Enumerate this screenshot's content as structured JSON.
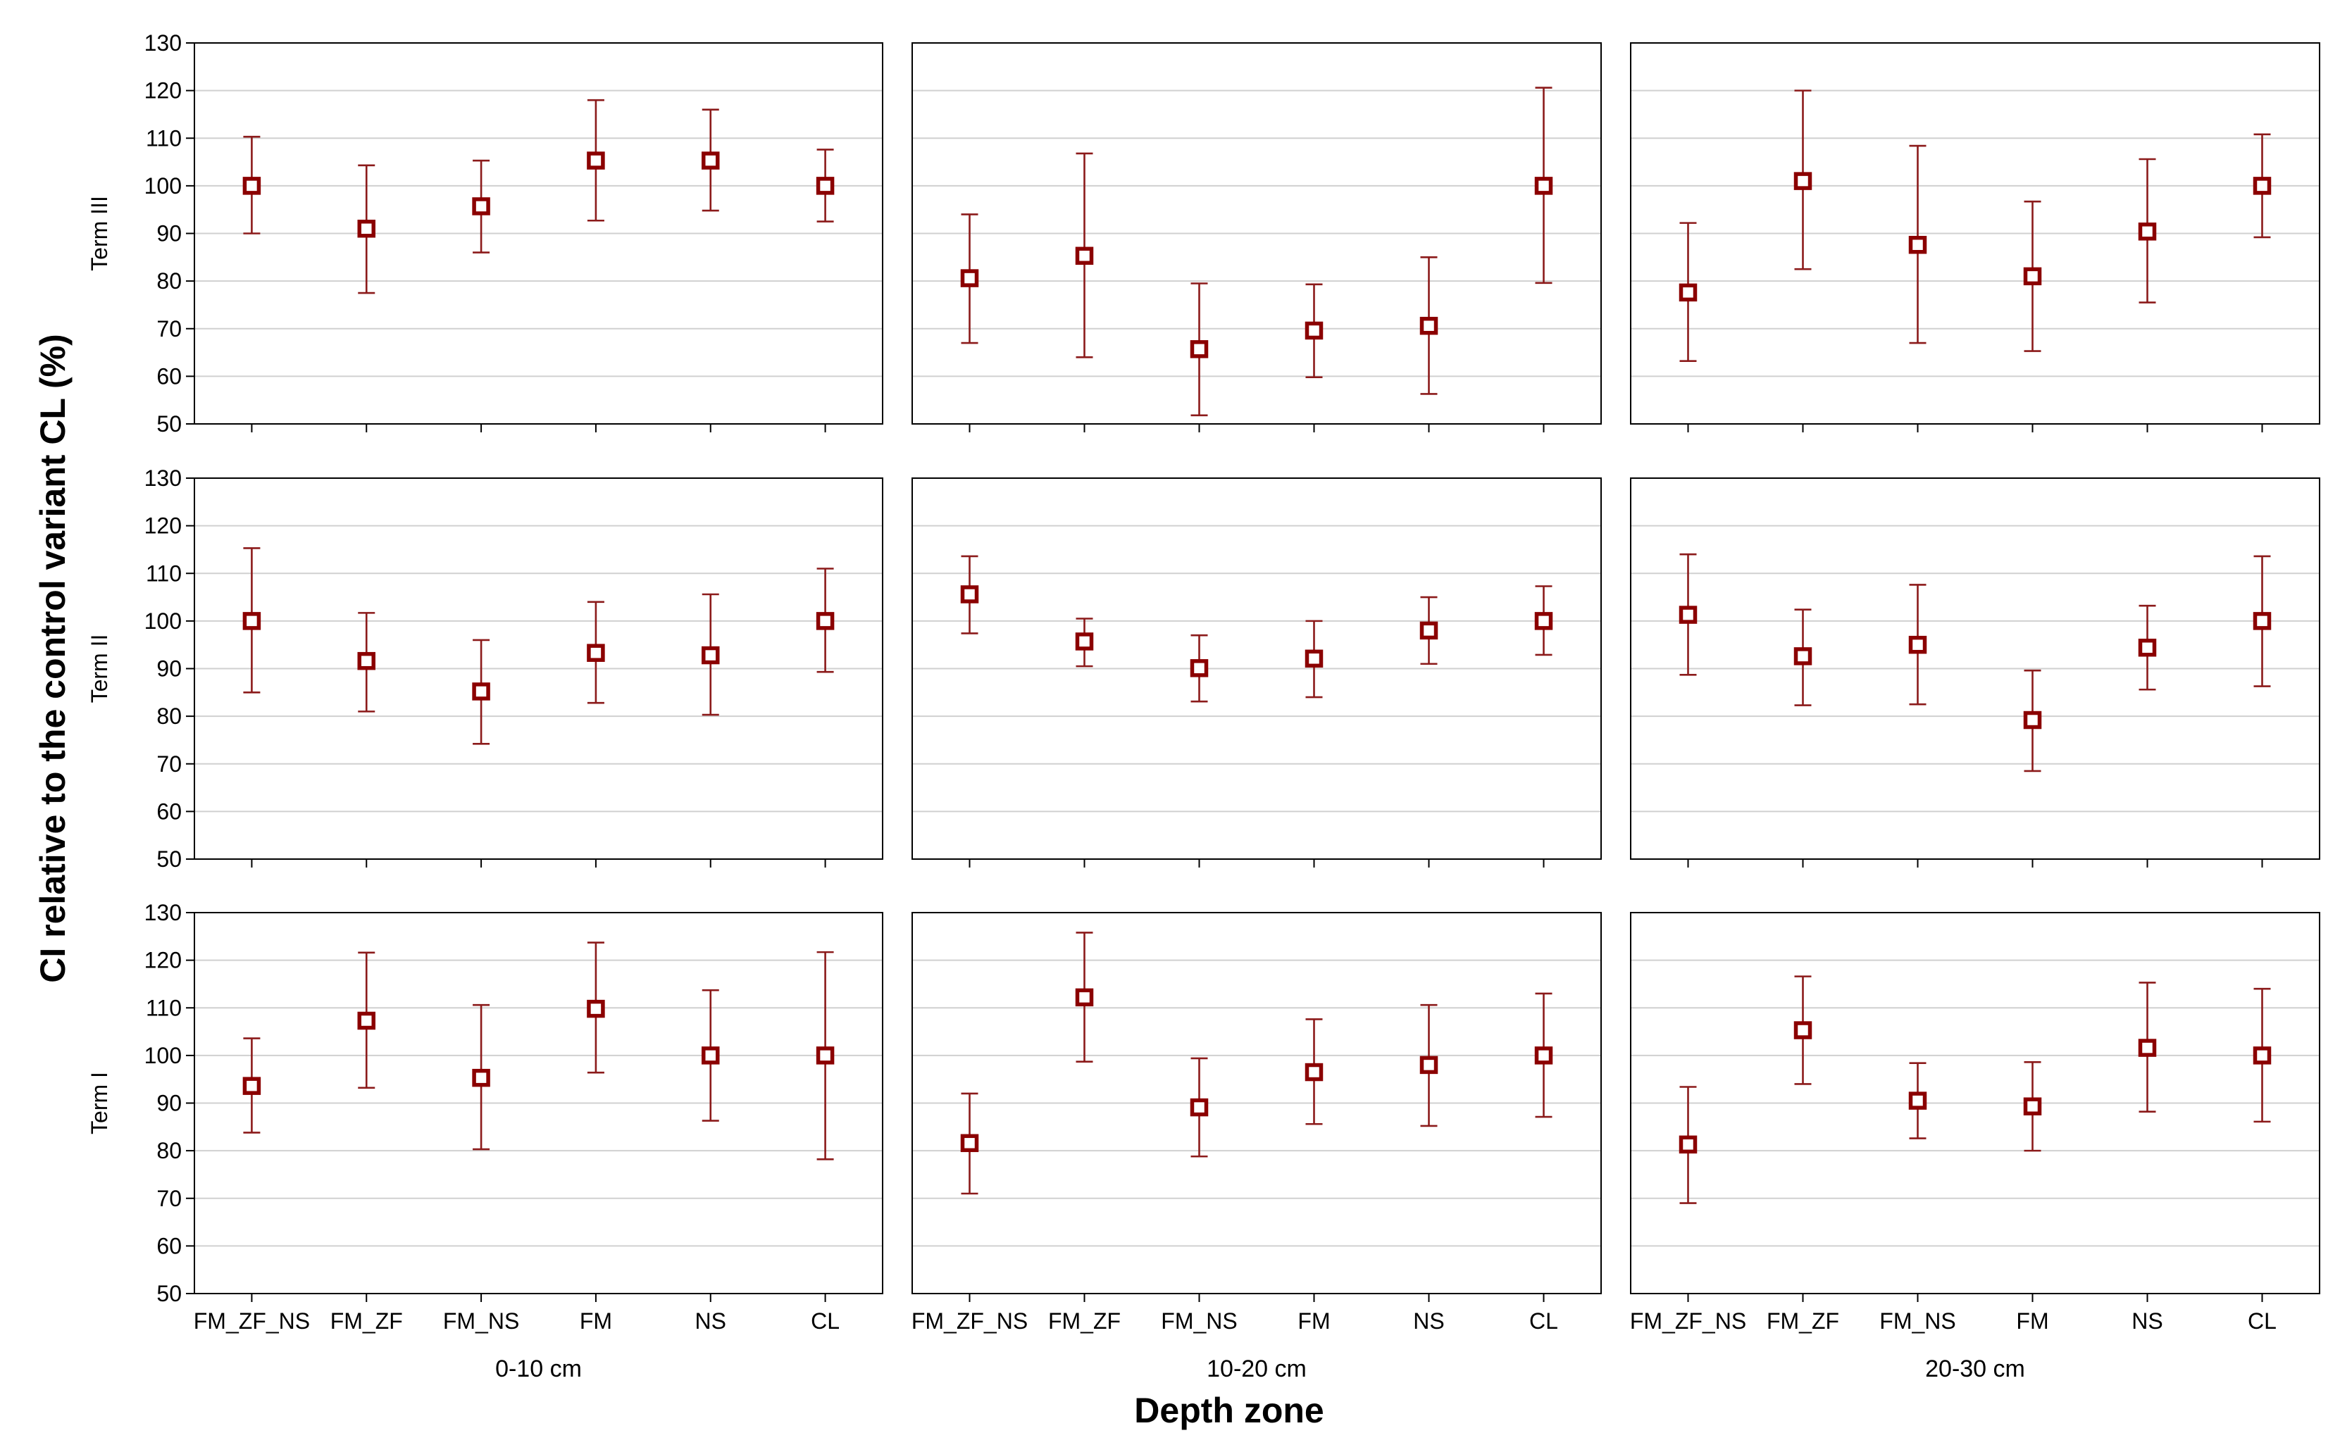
{
  "chart_data": {
    "type": "scatter",
    "subtype": "mean-with-error-bars",
    "ylabel": "CI relative to the control variant CL (%)",
    "xlabel": "Depth zone",
    "ylim": [
      50,
      130
    ],
    "yticks": [
      50,
      60,
      70,
      80,
      90,
      100,
      110,
      120,
      130
    ],
    "grid": true,
    "categories": [
      "FM_ZF_NS",
      "FM_ZF",
      "FM_NS",
      "FM",
      "NS",
      "CL"
    ],
    "zones": [
      "0-10 cm",
      "10-20 cm",
      "20-30 cm"
    ],
    "terms": [
      "Term III",
      "Term II",
      "Term I"
    ],
    "colors": {
      "marker": "#8b0000",
      "error_bar": "#8b1a1a",
      "grid": "#d0d0d0"
    },
    "panels": [
      {
        "term": "Term III",
        "zone": "0-10 cm",
        "mean": [
          100,
          91,
          95.7,
          105.3,
          105.3,
          100
        ],
        "lower": [
          90,
          77.5,
          86,
          92.7,
          94.8,
          92.5
        ],
        "upper": [
          110.3,
          104.3,
          105.3,
          118,
          116,
          107.6
        ]
      },
      {
        "term": "Term III",
        "zone": "10-20 cm",
        "mean": [
          80.6,
          85.3,
          65.7,
          69.6,
          70.6,
          100
        ],
        "lower": [
          67,
          64,
          51.8,
          59.8,
          56.3,
          79.6
        ],
        "upper": [
          94,
          106.8,
          79.5,
          79.3,
          85,
          120.6
        ]
      },
      {
        "term": "Term III",
        "zone": "20-30 cm",
        "mean": [
          77.6,
          101,
          87.6,
          81,
          90.4,
          100
        ],
        "lower": [
          63.2,
          82.5,
          67,
          65.3,
          75.5,
          89.2
        ],
        "upper": [
          92.2,
          120,
          108.4,
          96.7,
          105.6,
          110.8
        ]
      },
      {
        "term": "Term II",
        "zone": "0-10 cm",
        "mean": [
          100,
          91.6,
          85.2,
          93.3,
          92.8,
          100
        ],
        "lower": [
          85,
          81,
          74.2,
          82.8,
          80.3,
          89.3
        ],
        "upper": [
          115.3,
          101.7,
          96,
          104,
          105.6,
          111
        ]
      },
      {
        "term": "Term II",
        "zone": "10-20 cm",
        "mean": [
          105.6,
          95.7,
          90.1,
          92.1,
          98,
          100
        ],
        "lower": [
          97.4,
          90.5,
          83.1,
          84,
          91,
          92.9
        ],
        "upper": [
          113.6,
          100.5,
          97,
          100,
          105,
          107.3
        ]
      },
      {
        "term": "Term II",
        "zone": "20-30 cm",
        "mean": [
          101.3,
          92.6,
          95,
          79.2,
          94.4,
          100
        ],
        "lower": [
          88.7,
          82.3,
          82.5,
          68.5,
          85.6,
          86.3
        ],
        "upper": [
          114,
          102.4,
          107.6,
          89.6,
          103.2,
          113.6
        ]
      },
      {
        "term": "Term I",
        "zone": "0-10 cm",
        "mean": [
          93.6,
          107.3,
          95.3,
          109.8,
          100,
          100
        ],
        "lower": [
          83.8,
          93.2,
          80.3,
          96.4,
          86.3,
          78.2
        ],
        "upper": [
          103.6,
          121.6,
          110.6,
          123.7,
          113.7,
          121.7
        ]
      },
      {
        "term": "Term I",
        "zone": "10-20 cm",
        "mean": [
          81.6,
          112.2,
          89.1,
          96.5,
          98,
          100
        ],
        "lower": [
          71,
          98.7,
          78.8,
          85.6,
          85.2,
          87.1
        ],
        "upper": [
          92,
          125.8,
          99.4,
          107.6,
          110.6,
          113
        ]
      },
      {
        "term": "Term I",
        "zone": "20-30 cm",
        "mean": [
          81.3,
          105.3,
          90.5,
          89.3,
          101.6,
          100
        ],
        "lower": [
          69,
          94,
          82.6,
          80,
          88.2,
          86.1
        ],
        "upper": [
          93.4,
          116.6,
          98.4,
          98.6,
          115.3,
          114
        ]
      }
    ]
  }
}
